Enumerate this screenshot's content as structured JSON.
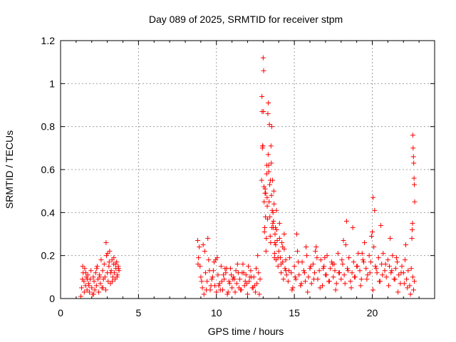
{
  "chart_data": {
    "type": "scatter",
    "title": "Day 089 of 2025, SRMTID for receiver stpm",
    "xlabel": "GPS time / hours",
    "ylabel": "SRMTID / TECUs",
    "xlim": [
      0,
      24
    ],
    "ylim": [
      0,
      1.2
    ],
    "grid": true,
    "x_ticks": [
      0,
      5,
      10,
      15,
      20
    ],
    "x_tick_labels": [
      "0",
      "5",
      "10",
      "15",
      "20"
    ],
    "y_ticks": [
      0,
      0.2,
      0.4,
      0.6,
      0.8,
      1.0,
      1.2
    ],
    "y_tick_labels": [
      "0",
      "0.2",
      "0.4",
      "0.6",
      "0.8",
      "1",
      "1.2"
    ],
    "marker": "plus",
    "color": "#ff0000",
    "series": [
      {
        "name": "stpm",
        "x": [
          1.3,
          1.35,
          1.4,
          1.45,
          1.5,
          1.55,
          1.6,
          1.65,
          1.7,
          1.75,
          1.8,
          1.85,
          1.9,
          1.95,
          2.0,
          2.05,
          2.1,
          2.15,
          2.2,
          2.25,
          2.3,
          2.35,
          2.4,
          2.45,
          2.5,
          2.55,
          2.6,
          2.65,
          2.7,
          2.75,
          2.8,
          2.85,
          2.9,
          2.95,
          3.0,
          3.05,
          3.1,
          3.15,
          3.2,
          3.25,
          3.3,
          3.35,
          3.4,
          3.45,
          3.5,
          3.55,
          3.6,
          3.65,
          3.7,
          3.75,
          1.42,
          1.52,
          1.62,
          1.72,
          1.82,
          2.12,
          2.32,
          2.52,
          2.72,
          2.92,
          3.02,
          3.12,
          3.22,
          3.32,
          3.42,
          3.52,
          3.62,
          3.72,
          8.8,
          8.85,
          8.9,
          8.95,
          9.0,
          9.1,
          9.2,
          9.3,
          9.4,
          9.5,
          9.6,
          9.7,
          9.8,
          9.9,
          10.0,
          10.1,
          10.2,
          10.3,
          10.4,
          10.5,
          10.6,
          10.7,
          10.8,
          10.9,
          11.0,
          11.1,
          11.2,
          11.3,
          11.4,
          11.5,
          11.6,
          11.7,
          11.8,
          11.9,
          12.0,
          12.1,
          12.2,
          12.3,
          12.4,
          12.5,
          12.6,
          12.7,
          12.8,
          9.05,
          9.25,
          9.45,
          9.65,
          9.85,
          10.05,
          10.25,
          10.45,
          10.65,
          10.85,
          11.05,
          11.25,
          11.45,
          11.65,
          11.85,
          12.05,
          12.25,
          12.45,
          12.65,
          8.82,
          9.15,
          9.35,
          9.55,
          9.75,
          9.95,
          10.15,
          10.35,
          10.55,
          10.75,
          10.95,
          11.15,
          11.35,
          11.55,
          11.75,
          11.95,
          12.15,
          12.35,
          12.55,
          12.75,
          12.9,
          12.93,
          12.96,
          13.0,
          13.03,
          13.06,
          13.1,
          13.13,
          13.16,
          13.2,
          13.23,
          13.26,
          13.3,
          13.33,
          13.36,
          13.4,
          13.43,
          13.46,
          13.5,
          13.53,
          13.56,
          13.6,
          13.63,
          13.66,
          13.7,
          13.73,
          13.76,
          13.8,
          13.83,
          13.86,
          13.9,
          13.95,
          14.0,
          14.05,
          14.1,
          14.15,
          14.2,
          14.25,
          14.3,
          14.35,
          14.4,
          14.45,
          14.5,
          12.95,
          13.05,
          13.15,
          13.25,
          13.35,
          13.45,
          13.55,
          13.65,
          13.75,
          13.85,
          13.95,
          14.05,
          14.15,
          14.25,
          14.35,
          14.45,
          12.92,
          12.98,
          13.02,
          13.08,
          13.12,
          13.18,
          13.22,
          13.28,
          13.32,
          13.38,
          13.42,
          13.48,
          13.52,
          13.58,
          13.62,
          13.68,
          13.72,
          13.78,
          14.6,
          14.7,
          14.8,
          14.9,
          15.0,
          15.1,
          15.2,
          15.3,
          15.4,
          15.5,
          15.6,
          15.7,
          15.8,
          15.9,
          16.0,
          16.1,
          16.2,
          16.3,
          16.4,
          16.5,
          16.6,
          16.7,
          16.8,
          16.9,
          17.0,
          17.1,
          17.2,
          17.3,
          17.4,
          17.5,
          17.6,
          17.7,
          17.8,
          17.9,
          18.0,
          18.1,
          18.2,
          18.3,
          18.4,
          18.5,
          18.6,
          18.7,
          18.8,
          18.9,
          19.0,
          19.1,
          19.2,
          19.3,
          19.4,
          19.5,
          19.6,
          19.7,
          19.8,
          19.9,
          20.0,
          20.1,
          20.2,
          20.3,
          20.4,
          20.5,
          20.6,
          20.7,
          20.8,
          20.9,
          21.0,
          21.1,
          21.2,
          21.3,
          21.4,
          21.5,
          21.6,
          21.7,
          21.8,
          21.9,
          22.0,
          22.1,
          22.2,
          22.3,
          22.4,
          22.5,
          22.6,
          22.7,
          14.65,
          14.85,
          15.05,
          15.25,
          15.45,
          15.65,
          15.85,
          16.05,
          16.25,
          16.45,
          16.65,
          16.85,
          17.05,
          17.25,
          17.45,
          17.65,
          17.85,
          18.05,
          18.25,
          18.45,
          18.65,
          18.85,
          19.05,
          19.25,
          19.45,
          19.65,
          19.85,
          20.05,
          20.25,
          20.45,
          20.65,
          20.85,
          21.05,
          21.25,
          21.45,
          21.65,
          21.85,
          22.05,
          22.25,
          22.45,
          22.65,
          15.15,
          15.75,
          16.35,
          16.95,
          17.55,
          18.15,
          18.35,
          18.75,
          19.35,
          19.95,
          20.05,
          20.15,
          20.55,
          21.15,
          21.55,
          22.15,
          22.6,
          22.62,
          22.64,
          22.66,
          22.68,
          22.7,
          22.72,
          22.58,
          22.56,
          22.54
        ],
        "y": [
          0.01,
          0.05,
          0.09,
          0.12,
          0.08,
          0.14,
          0.06,
          0.1,
          0.04,
          0.11,
          0.07,
          0.03,
          0.09,
          0.13,
          0.05,
          0.02,
          0.1,
          0.08,
          0.04,
          0.12,
          0.06,
          0.15,
          0.09,
          0.03,
          0.11,
          0.07,
          0.18,
          0.05,
          0.13,
          0.09,
          0.16,
          0.1,
          0.04,
          0.2,
          0.12,
          0.08,
          0.15,
          0.22,
          0.07,
          0.13,
          0.18,
          0.1,
          0.16,
          0.12,
          0.09,
          0.14,
          0.17,
          0.11,
          0.15,
          0.13,
          0.15,
          0.03,
          0.12,
          0.09,
          0.06,
          0.02,
          0.14,
          0.1,
          0.05,
          0.26,
          0.21,
          0.17,
          0.12,
          0.08,
          0.19,
          0.16,
          0.1,
          0.14,
          0.27,
          0.19,
          0.24,
          0.15,
          0.1,
          0.05,
          0.02,
          0.12,
          0.08,
          0.18,
          0.04,
          0.09,
          0.13,
          0.06,
          0.03,
          0.11,
          0.07,
          0.15,
          0.04,
          0.09,
          0.12,
          0.02,
          0.08,
          0.14,
          0.05,
          0.1,
          0.03,
          0.07,
          0.12,
          0.09,
          0.04,
          0.16,
          0.06,
          0.11,
          0.02,
          0.08,
          0.13,
          0.05,
          0.1,
          0.03,
          0.07,
          0.12,
          0.09,
          0.08,
          0.22,
          0.28,
          0.06,
          0.17,
          0.19,
          0.04,
          0.11,
          0.14,
          0.07,
          0.09,
          0.13,
          0.05,
          0.12,
          0.08,
          0.15,
          0.1,
          0.06,
          0.2,
          0.16,
          0.25,
          0.04,
          0.13,
          0.1,
          0.18,
          0.06,
          0.08,
          0.14,
          0.03,
          0.11,
          0.09,
          0.16,
          0.04,
          0.12,
          0.07,
          0.1,
          0.05,
          0.14,
          0.02,
          0.55,
          0.87,
          0.71,
          1.12,
          1.06,
          0.45,
          0.33,
          0.51,
          0.49,
          0.28,
          0.62,
          0.43,
          0.86,
          0.91,
          0.59,
          0.81,
          0.38,
          0.55,
          0.71,
          0.48,
          0.33,
          0.55,
          0.4,
          0.36,
          0.44,
          0.21,
          0.3,
          0.25,
          0.18,
          0.32,
          0.27,
          0.15,
          0.22,
          0.35,
          0.19,
          0.12,
          0.26,
          0.17,
          0.09,
          0.23,
          0.14,
          0.18,
          0.11,
          0.7,
          0.52,
          0.38,
          0.47,
          0.62,
          0.29,
          0.8,
          0.33,
          0.26,
          0.41,
          0.19,
          0.28,
          0.16,
          0.24,
          0.3,
          0.13,
          0.94,
          0.71,
          0.87,
          0.31,
          0.49,
          0.22,
          0.58,
          0.37,
          0.67,
          0.45,
          0.53,
          0.26,
          0.63,
          0.41,
          0.35,
          0.5,
          0.19,
          0.33,
          0.08,
          0.19,
          0.12,
          0.05,
          0.15,
          0.09,
          0.22,
          0.11,
          0.06,
          0.17,
          0.13,
          0.08,
          0.2,
          0.1,
          0.14,
          0.07,
          0.16,
          0.12,
          0.24,
          0.09,
          0.13,
          0.18,
          0.06,
          0.15,
          0.11,
          0.2,
          0.08,
          0.14,
          0.17,
          0.1,
          0.13,
          0.07,
          0.21,
          0.12,
          0.09,
          0.16,
          0.11,
          0.25,
          0.14,
          0.19,
          0.08,
          0.12,
          0.17,
          0.1,
          0.15,
          0.21,
          0.13,
          0.09,
          0.18,
          0.26,
          0.14,
          0.11,
          0.2,
          0.17,
          0.31,
          0.24,
          0.15,
          0.12,
          0.19,
          0.08,
          0.16,
          0.21,
          0.13,
          0.1,
          0.18,
          0.15,
          0.12,
          0.2,
          0.09,
          0.14,
          0.17,
          0.11,
          0.07,
          0.15,
          0.12,
          0.18,
          0.09,
          0.13,
          0.06,
          0.14,
          0.1,
          0.08,
          0.13,
          0.04,
          0.1,
          0.17,
          0.07,
          0.12,
          0.03,
          0.15,
          0.09,
          0.19,
          0.05,
          0.14,
          0.11,
          0.08,
          0.16,
          0.04,
          0.12,
          0.18,
          0.07,
          0.13,
          0.05,
          0.1,
          0.15,
          0.06,
          0.17,
          0.09,
          0.12,
          0.04,
          0.14,
          0.08,
          0.11,
          0.16,
          0.06,
          0.13,
          0.09,
          0.03,
          0.12,
          0.07,
          0.05,
          0.02,
          0.04,
          0.3,
          0.24,
          0.22,
          0.19,
          0.16,
          0.27,
          0.36,
          0.33,
          0.21,
          0.29,
          0.47,
          0.41,
          0.34,
          0.28,
          0.19,
          0.25,
          0.76,
          0.7,
          0.66,
          0.63,
          0.56,
          0.53,
          0.45,
          0.35,
          0.32,
          0.28
        ]
      }
    ]
  }
}
